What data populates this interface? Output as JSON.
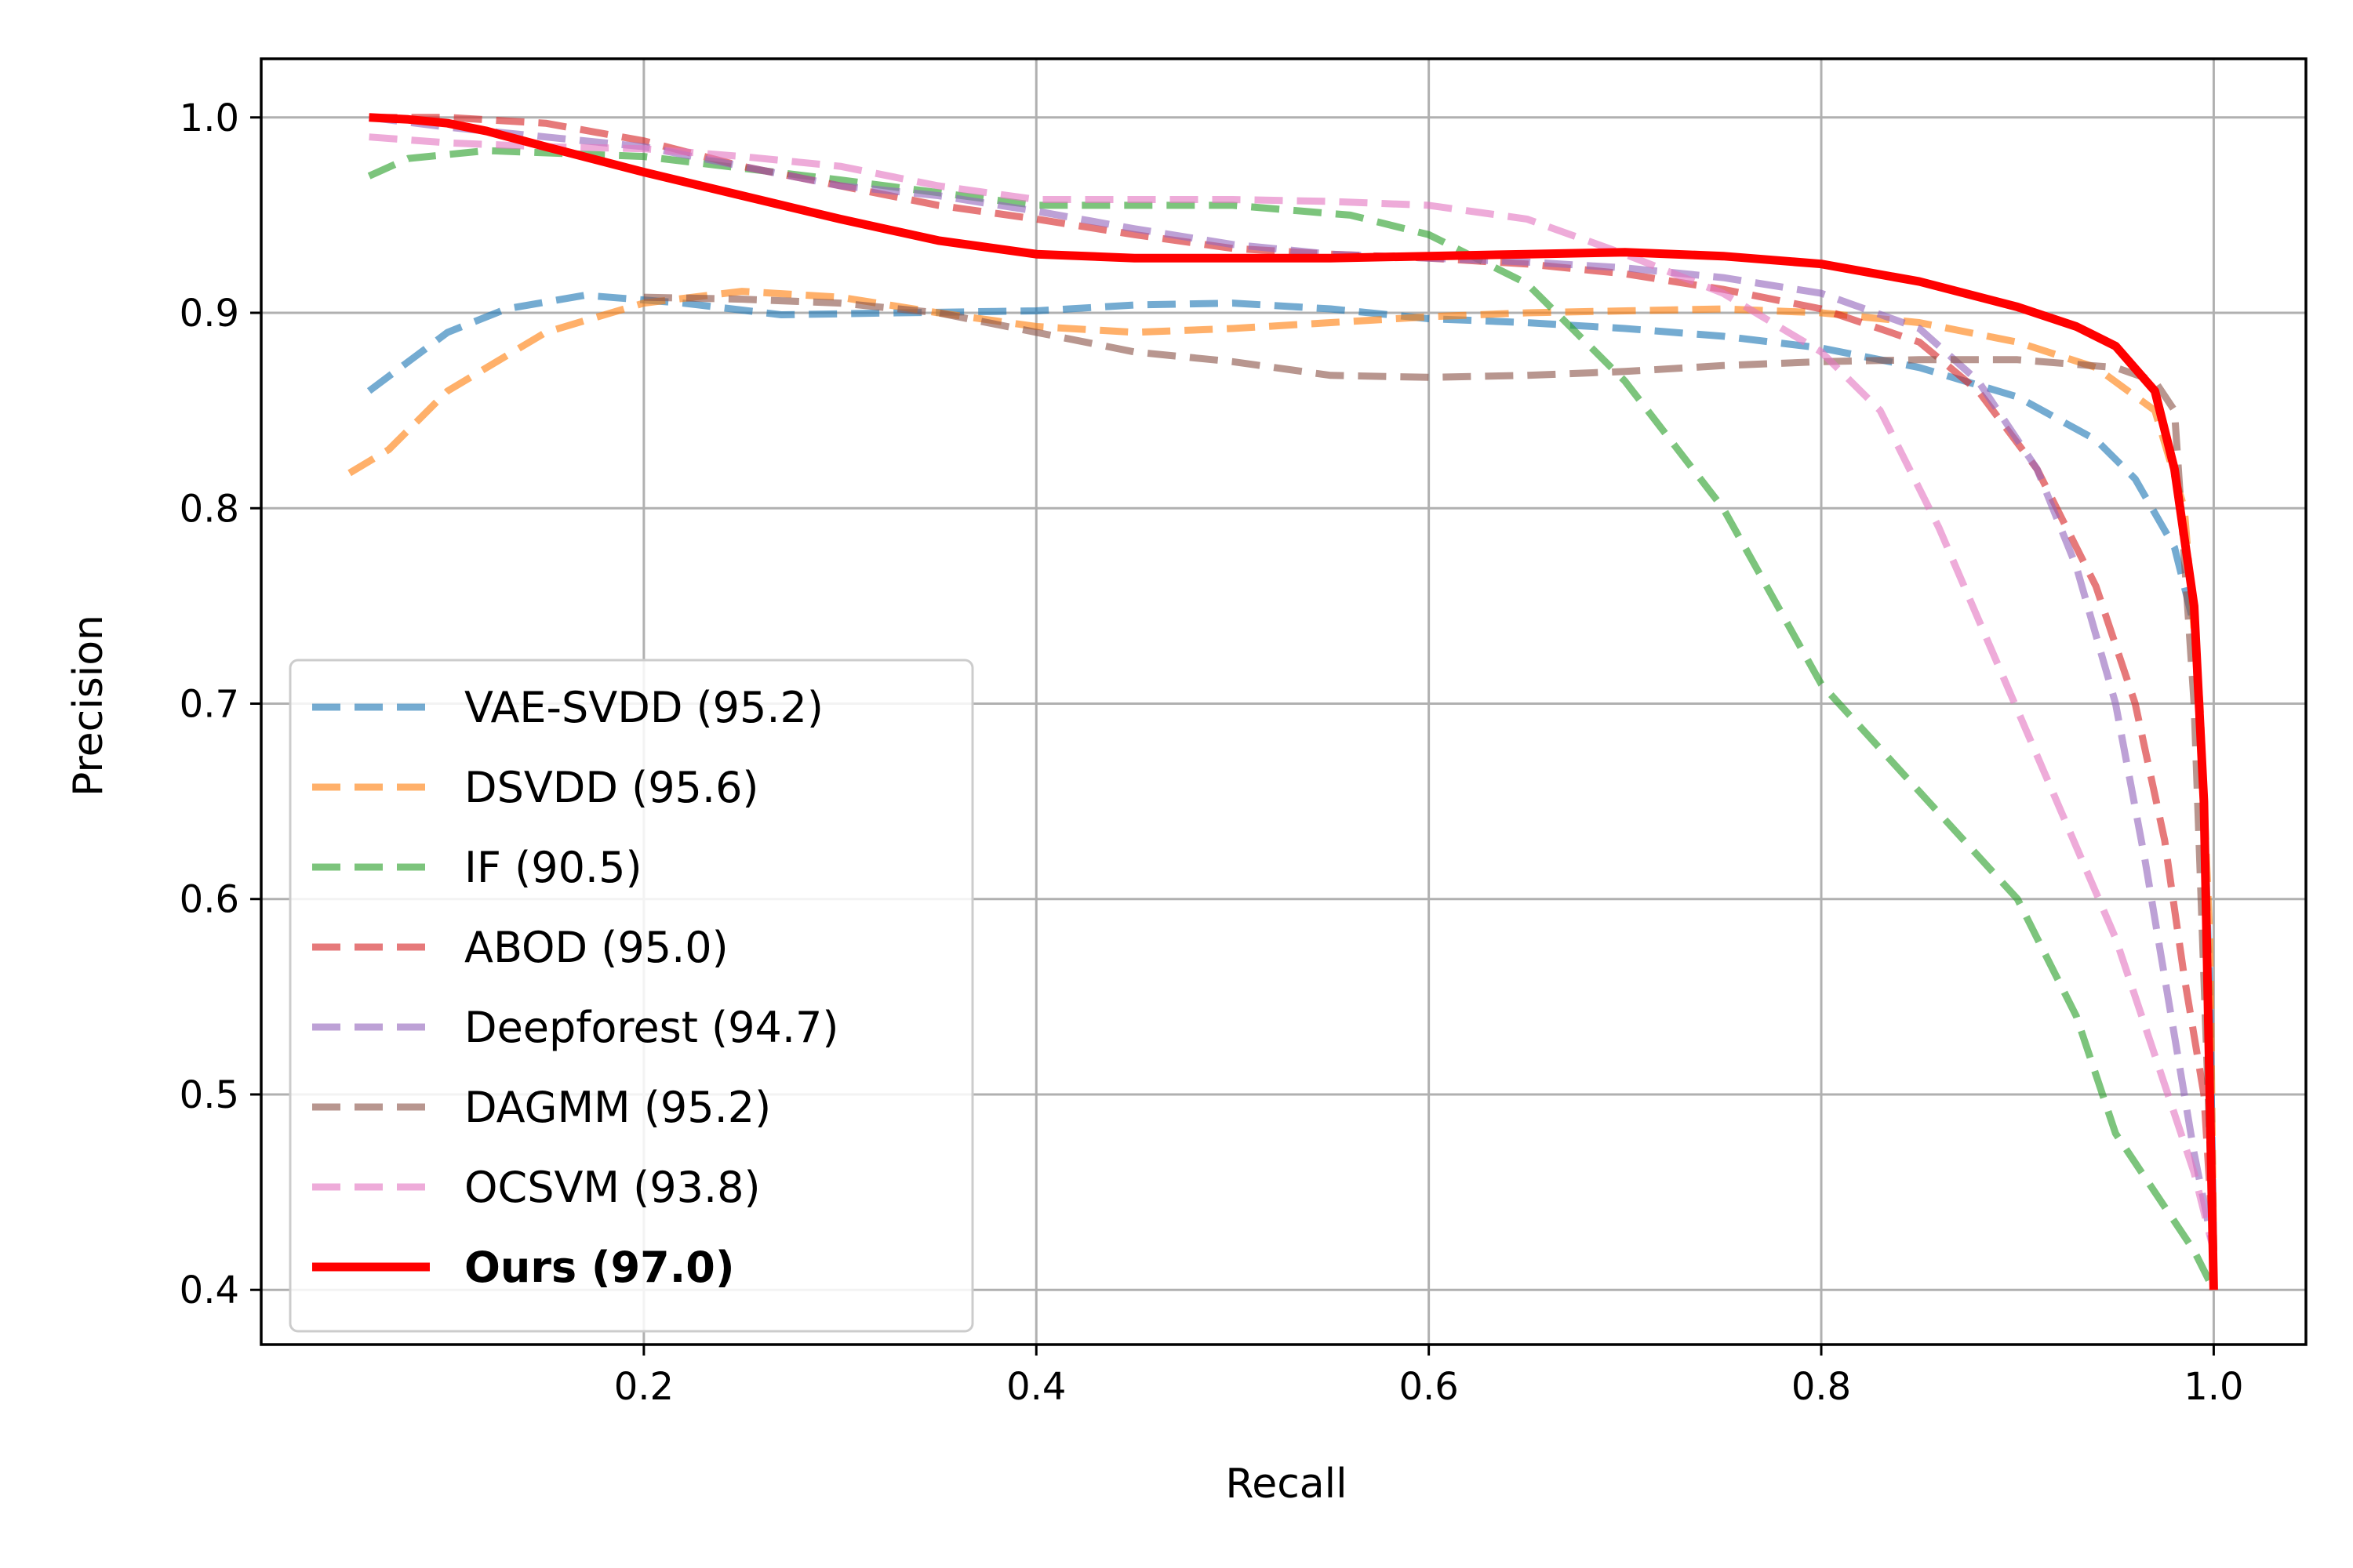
{
  "chart_data": {
    "type": "line",
    "title": "",
    "xlabel": "Recall",
    "ylabel": "Precision",
    "xlim": [
      0.005,
      1.047
    ],
    "ylim": [
      0.372,
      1.03
    ],
    "xticks": [
      0.2,
      0.4,
      0.6,
      0.8,
      1.0
    ],
    "xtick_labels": [
      "0.2",
      "0.4",
      "0.6",
      "0.8",
      "1.0"
    ],
    "yticks": [
      0.4,
      0.5,
      0.6,
      0.7,
      0.8,
      0.9,
      1.0
    ],
    "ytick_labels": [
      "0.4",
      "0.5",
      "0.6",
      "0.7",
      "0.8",
      "0.9",
      "1.0"
    ],
    "grid": true,
    "legend_position": "lower-left",
    "series": [
      {
        "name": "VAE-SVDD (95.2)",
        "color": "#1f77b4",
        "style": "dashed",
        "bold": false,
        "points": [
          [
            0.06,
            0.86
          ],
          [
            0.08,
            0.875
          ],
          [
            0.1,
            0.89
          ],
          [
            0.13,
            0.902
          ],
          [
            0.17,
            0.909
          ],
          [
            0.22,
            0.905
          ],
          [
            0.27,
            0.899
          ],
          [
            0.33,
            0.9
          ],
          [
            0.4,
            0.901
          ],
          [
            0.45,
            0.904
          ],
          [
            0.5,
            0.905
          ],
          [
            0.55,
            0.902
          ],
          [
            0.6,
            0.897
          ],
          [
            0.65,
            0.895
          ],
          [
            0.7,
            0.892
          ],
          [
            0.75,
            0.888
          ],
          [
            0.8,
            0.882
          ],
          [
            0.85,
            0.872
          ],
          [
            0.9,
            0.857
          ],
          [
            0.94,
            0.835
          ],
          [
            0.96,
            0.815
          ],
          [
            0.98,
            0.78
          ],
          [
            0.99,
            0.74
          ],
          [
            0.995,
            0.65
          ],
          [
            0.998,
            0.55
          ],
          [
            1.0,
            0.42
          ]
        ]
      },
      {
        "name": "DSVDD (95.6)",
        "color": "#ff7f0e",
        "style": "dashed",
        "bold": false,
        "points": [
          [
            0.05,
            0.818
          ],
          [
            0.07,
            0.83
          ],
          [
            0.1,
            0.86
          ],
          [
            0.15,
            0.89
          ],
          [
            0.2,
            0.905
          ],
          [
            0.25,
            0.911
          ],
          [
            0.3,
            0.908
          ],
          [
            0.35,
            0.9
          ],
          [
            0.4,
            0.893
          ],
          [
            0.45,
            0.89
          ],
          [
            0.5,
            0.892
          ],
          [
            0.55,
            0.895
          ],
          [
            0.6,
            0.898
          ],
          [
            0.65,
            0.9
          ],
          [
            0.7,
            0.901
          ],
          [
            0.75,
            0.902
          ],
          [
            0.8,
            0.9
          ],
          [
            0.85,
            0.895
          ],
          [
            0.9,
            0.885
          ],
          [
            0.94,
            0.872
          ],
          [
            0.97,
            0.85
          ],
          [
            0.985,
            0.8
          ],
          [
            0.993,
            0.7
          ],
          [
            0.998,
            0.58
          ],
          [
            1.0,
            0.42
          ]
        ]
      },
      {
        "name": "IF (90.5)",
        "color": "#2ca02c",
        "style": "dashed",
        "bold": false,
        "points": [
          [
            0.06,
            0.97
          ],
          [
            0.08,
            0.979
          ],
          [
            0.12,
            0.983
          ],
          [
            0.2,
            0.98
          ],
          [
            0.3,
            0.968
          ],
          [
            0.4,
            0.955
          ],
          [
            0.5,
            0.955
          ],
          [
            0.56,
            0.95
          ],
          [
            0.6,
            0.94
          ],
          [
            0.65,
            0.915
          ],
          [
            0.7,
            0.865
          ],
          [
            0.75,
            0.8
          ],
          [
            0.8,
            0.71
          ],
          [
            0.85,
            0.655
          ],
          [
            0.9,
            0.6
          ],
          [
            0.93,
            0.54
          ],
          [
            0.95,
            0.48
          ],
          [
            0.97,
            0.45
          ],
          [
            0.99,
            0.42
          ],
          [
            1.0,
            0.4
          ]
        ]
      },
      {
        "name": "ABOD (95.0)",
        "color": "#d62728",
        "style": "dashed",
        "bold": false,
        "points": [
          [
            0.06,
            1.0
          ],
          [
            0.1,
            1.0
          ],
          [
            0.15,
            0.997
          ],
          [
            0.2,
            0.988
          ],
          [
            0.25,
            0.975
          ],
          [
            0.3,
            0.965
          ],
          [
            0.35,
            0.955
          ],
          [
            0.4,
            0.948
          ],
          [
            0.45,
            0.94
          ],
          [
            0.5,
            0.933
          ],
          [
            0.55,
            0.93
          ],
          [
            0.6,
            0.928
          ],
          [
            0.65,
            0.925
          ],
          [
            0.7,
            0.92
          ],
          [
            0.75,
            0.912
          ],
          [
            0.8,
            0.902
          ],
          [
            0.85,
            0.885
          ],
          [
            0.88,
            0.86
          ],
          [
            0.91,
            0.82
          ],
          [
            0.94,
            0.76
          ],
          [
            0.96,
            0.7
          ],
          [
            0.975,
            0.63
          ],
          [
            0.985,
            0.56
          ],
          [
            0.995,
            0.5
          ],
          [
            1.0,
            0.42
          ]
        ]
      },
      {
        "name": "Deepforest (94.7)",
        "color": "#9467bd",
        "style": "dashed",
        "bold": false,
        "points": [
          [
            0.06,
            1.0
          ],
          [
            0.1,
            0.995
          ],
          [
            0.15,
            0.99
          ],
          [
            0.2,
            0.985
          ],
          [
            0.25,
            0.975
          ],
          [
            0.3,
            0.965
          ],
          [
            0.35,
            0.96
          ],
          [
            0.4,
            0.952
          ],
          [
            0.45,
            0.943
          ],
          [
            0.5,
            0.935
          ],
          [
            0.55,
            0.93
          ],
          [
            0.6,
            0.928
          ],
          [
            0.65,
            0.926
          ],
          [
            0.7,
            0.923
          ],
          [
            0.75,
            0.918
          ],
          [
            0.8,
            0.91
          ],
          [
            0.85,
            0.892
          ],
          [
            0.88,
            0.865
          ],
          [
            0.91,
            0.82
          ],
          [
            0.93,
            0.77
          ],
          [
            0.95,
            0.7
          ],
          [
            0.965,
            0.62
          ],
          [
            0.98,
            0.53
          ],
          [
            0.99,
            0.47
          ],
          [
            1.0,
            0.42
          ]
        ]
      },
      {
        "name": "DAGMM (95.2)",
        "color": "#8c564b",
        "style": "dashed",
        "bold": false,
        "points": [
          [
            0.2,
            0.908
          ],
          [
            0.25,
            0.907
          ],
          [
            0.3,
            0.905
          ],
          [
            0.35,
            0.9
          ],
          [
            0.4,
            0.89
          ],
          [
            0.45,
            0.88
          ],
          [
            0.5,
            0.875
          ],
          [
            0.55,
            0.868
          ],
          [
            0.6,
            0.867
          ],
          [
            0.65,
            0.868
          ],
          [
            0.7,
            0.87
          ],
          [
            0.75,
            0.873
          ],
          [
            0.8,
            0.875
          ],
          [
            0.85,
            0.876
          ],
          [
            0.9,
            0.876
          ],
          [
            0.95,
            0.872
          ],
          [
            0.97,
            0.865
          ],
          [
            0.98,
            0.85
          ],
          [
            0.99,
            0.7
          ],
          [
            1.0,
            0.42
          ]
        ]
      },
      {
        "name": "OCSVM (93.8)",
        "color": "#e377c2",
        "style": "dashed",
        "bold": false,
        "points": [
          [
            0.06,
            0.99
          ],
          [
            0.1,
            0.987
          ],
          [
            0.15,
            0.985
          ],
          [
            0.2,
            0.984
          ],
          [
            0.25,
            0.98
          ],
          [
            0.3,
            0.975
          ],
          [
            0.35,
            0.965
          ],
          [
            0.4,
            0.958
          ],
          [
            0.45,
            0.958
          ],
          [
            0.5,
            0.958
          ],
          [
            0.55,
            0.957
          ],
          [
            0.6,
            0.955
          ],
          [
            0.65,
            0.948
          ],
          [
            0.7,
            0.93
          ],
          [
            0.75,
            0.91
          ],
          [
            0.8,
            0.88
          ],
          [
            0.83,
            0.85
          ],
          [
            0.86,
            0.79
          ],
          [
            0.89,
            0.72
          ],
          [
            0.92,
            0.65
          ],
          [
            0.95,
            0.58
          ],
          [
            0.97,
            0.52
          ],
          [
            0.99,
            0.46
          ],
          [
            1.0,
            0.42
          ]
        ]
      },
      {
        "name": "Ours (97.0)",
        "color": "#ff0000",
        "style": "solid",
        "bold": true,
        "points": [
          [
            0.06,
            1.0
          ],
          [
            0.08,
            0.999
          ],
          [
            0.1,
            0.997
          ],
          [
            0.12,
            0.993
          ],
          [
            0.15,
            0.985
          ],
          [
            0.2,
            0.972
          ],
          [
            0.25,
            0.96
          ],
          [
            0.3,
            0.948
          ],
          [
            0.35,
            0.937
          ],
          [
            0.4,
            0.93
          ],
          [
            0.45,
            0.928
          ],
          [
            0.5,
            0.928
          ],
          [
            0.55,
            0.928
          ],
          [
            0.6,
            0.929
          ],
          [
            0.65,
            0.93
          ],
          [
            0.7,
            0.931
          ],
          [
            0.75,
            0.929
          ],
          [
            0.8,
            0.925
          ],
          [
            0.85,
            0.916
          ],
          [
            0.9,
            0.903
          ],
          [
            0.93,
            0.893
          ],
          [
            0.95,
            0.883
          ],
          [
            0.97,
            0.86
          ],
          [
            0.98,
            0.82
          ],
          [
            0.99,
            0.75
          ],
          [
            0.995,
            0.65
          ],
          [
            0.998,
            0.5
          ],
          [
            1.0,
            0.4
          ]
        ]
      }
    ]
  }
}
